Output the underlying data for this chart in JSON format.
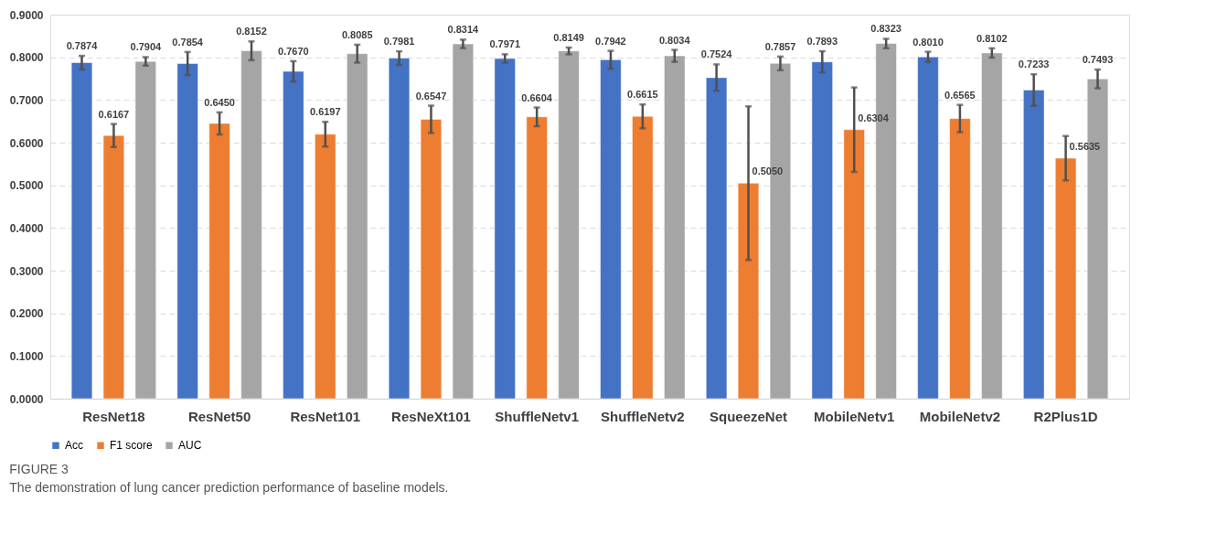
{
  "chart_data": {
    "type": "bar",
    "categories": [
      "ResNet18",
      "ResNet50",
      "ResNet101",
      "ResNeXt101",
      "ShuffleNetv1",
      "ShuffleNetv2",
      "SqueezeNet",
      "MobileNetv1",
      "MobileNetv2",
      "R2Plus1D"
    ],
    "series": [
      {
        "name": "Acc",
        "color": "#4472c4",
        "values": [
          0.7874,
          0.7854,
          0.767,
          0.7981,
          0.7971,
          0.7942,
          0.7524,
          0.7893,
          0.801,
          0.7233
        ],
        "errors": [
          0.016,
          0.027,
          0.024,
          0.016,
          0.01,
          0.021,
          0.031,
          0.025,
          0.012,
          0.037
        ],
        "value_labels": [
          "0.7874",
          "0.7854",
          "0.7670",
          "0.7981",
          "0.7971",
          "0.7942",
          "0.7524",
          "0.7893",
          "0.8010",
          "0.7233"
        ]
      },
      {
        "name": "F1 score",
        "color": "#ed7d31",
        "values": [
          0.6167,
          0.645,
          0.6197,
          0.6547,
          0.6604,
          0.6615,
          0.505,
          0.6304,
          0.6565,
          0.5635
        ],
        "errors": [
          0.027,
          0.026,
          0.029,
          0.032,
          0.022,
          0.028,
          0.18,
          0.099,
          0.032,
          0.052
        ],
        "value_labels": [
          "0.6167",
          "0.6450",
          "0.6197",
          "0.6547",
          "0.6604",
          "0.6615",
          "0.5050",
          "0.6304",
          "0.6565",
          "0.5635"
        ]
      },
      {
        "name": "AUC",
        "color": "#a5a5a5",
        "values": [
          0.7904,
          0.8152,
          0.8085,
          0.8314,
          0.8149,
          0.8034,
          0.7857,
          0.8323,
          0.8102,
          0.7493
        ],
        "errors": [
          0.01,
          0.022,
          0.021,
          0.01,
          0.008,
          0.014,
          0.016,
          0.011,
          0.011,
          0.022
        ],
        "value_labels": [
          "0.7904",
          "0.8152",
          "0.8085",
          "0.8314",
          "0.8149",
          "0.8034",
          "0.7857",
          "0.8323",
          "0.8102",
          "0.7493"
        ]
      }
    ],
    "ylim": [
      0,
      0.9
    ],
    "yticks": [
      {
        "value": 0,
        "label": "0.0000"
      },
      {
        "value": 0.1,
        "label": "0.1000"
      },
      {
        "value": 0.2,
        "label": "0.2000"
      },
      {
        "value": 0.3,
        "label": "0.3000"
      },
      {
        "value": 0.4,
        "label": "0.4000"
      },
      {
        "value": 0.5,
        "label": "0.5000"
      },
      {
        "value": 0.6,
        "label": "0.6000"
      },
      {
        "value": 0.7,
        "label": "0.7000"
      },
      {
        "value": 0.8,
        "label": "0.8000"
      },
      {
        "value": 0.9,
        "label": "0.9000"
      }
    ],
    "grid": "y",
    "legend": "bottom",
    "annotations": [
      "FIGURE 3",
      "The demonstration of lung cancer prediction performance of baseline models."
    ]
  }
}
